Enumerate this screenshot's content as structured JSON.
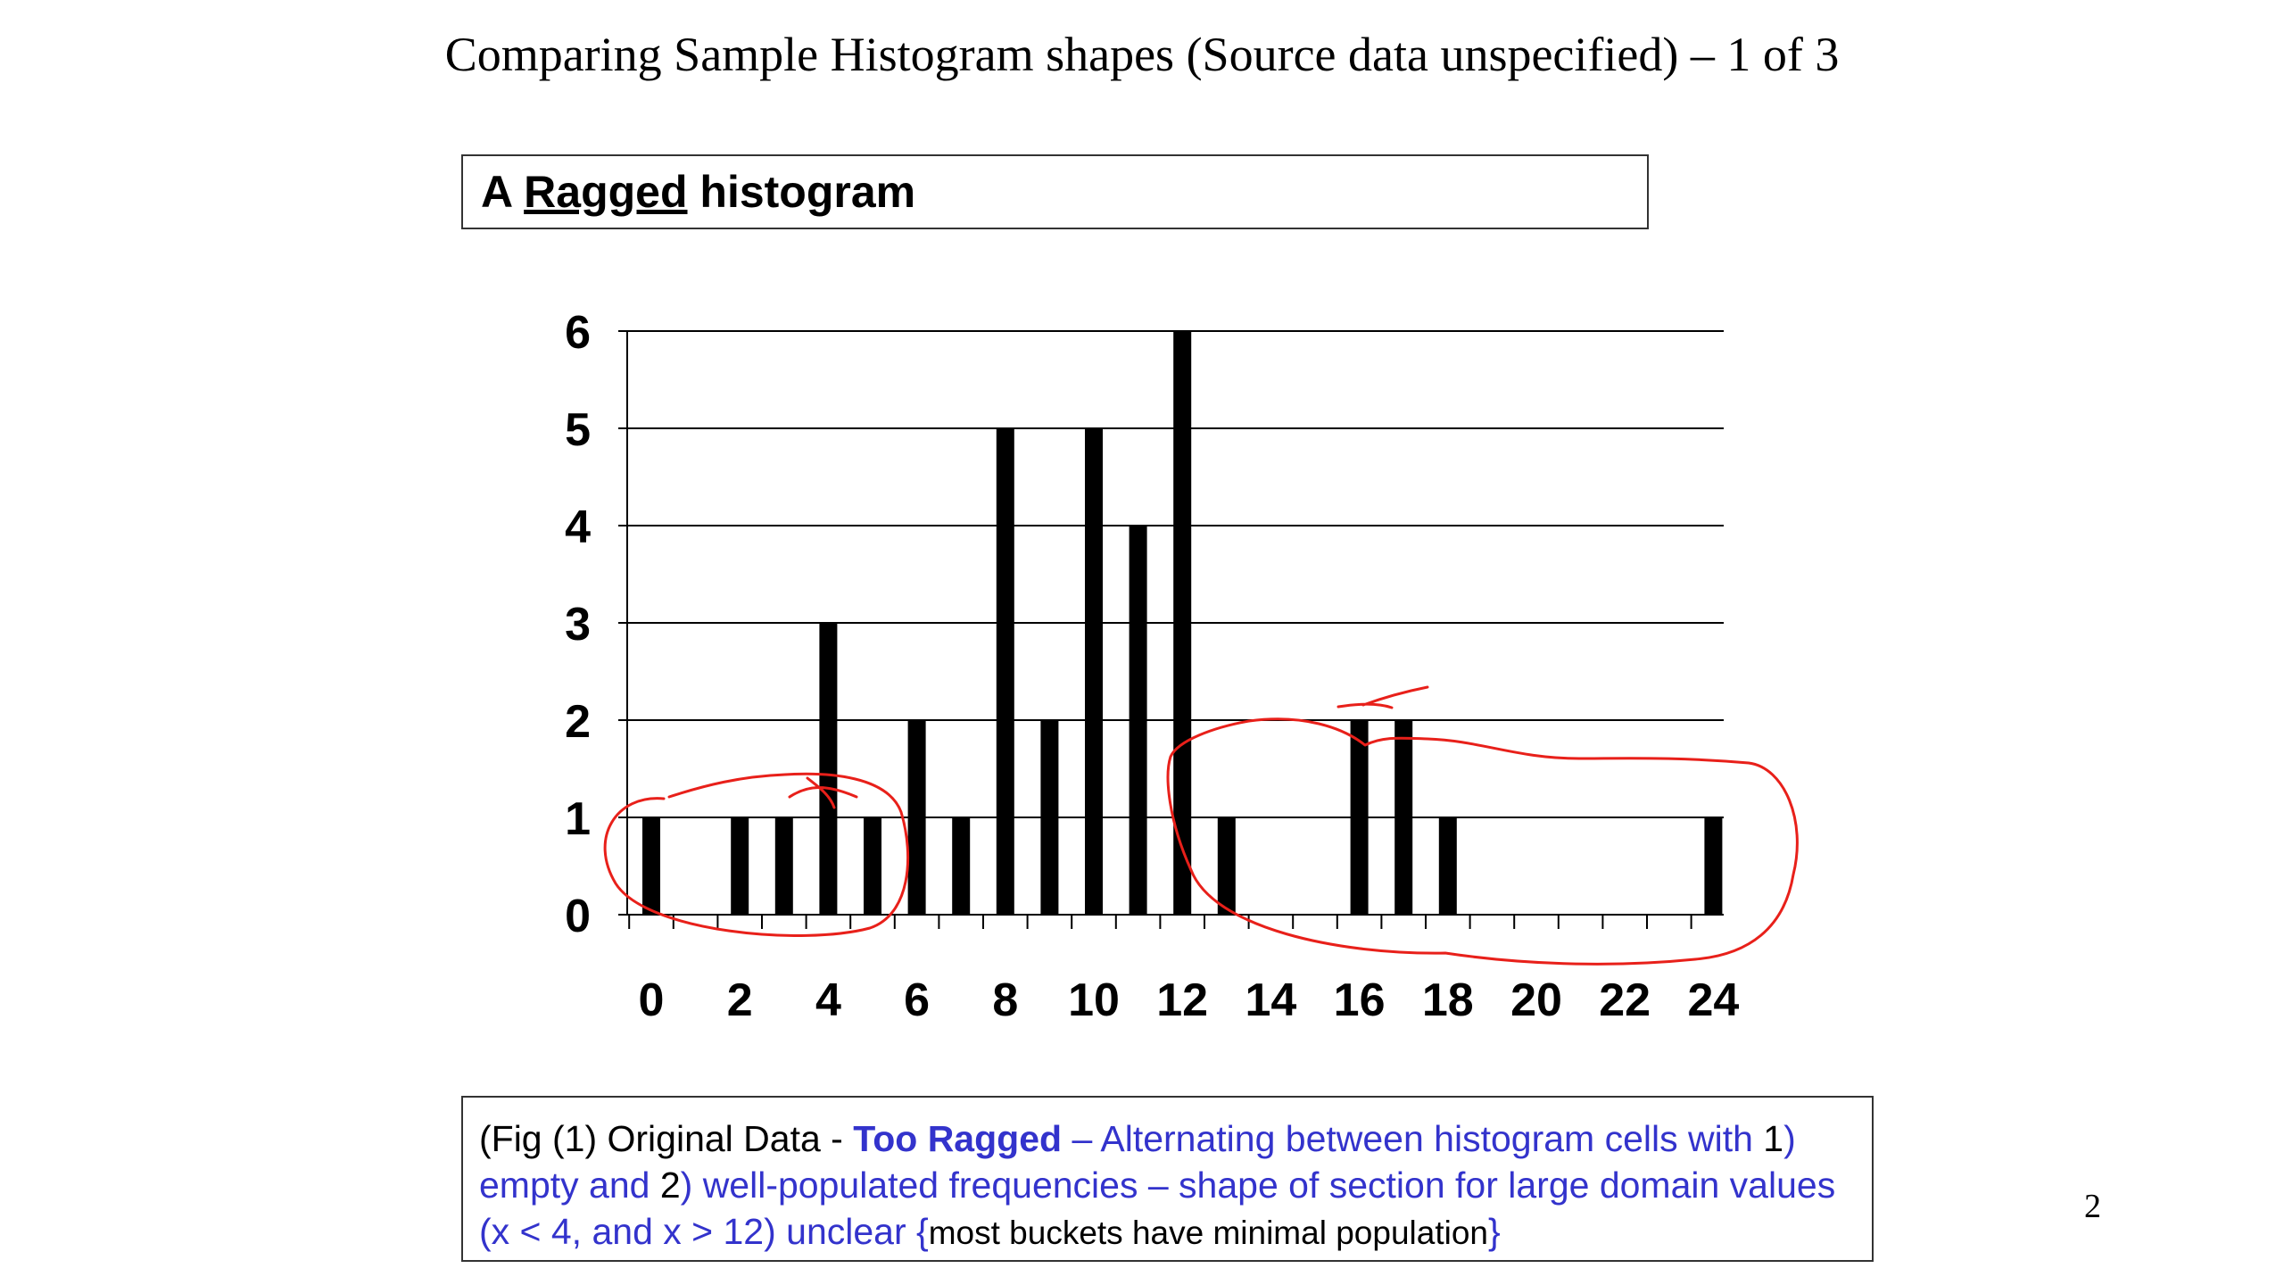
{
  "slide": {
    "title": "Comparing Sample Histogram shapes (Source data unspecified) – 1 of 3",
    "page_number": "2"
  },
  "title_box": {
    "prefix": "A ",
    "underlined": "Ragged",
    "suffix": " histogram"
  },
  "caption": {
    "part1": "(Fig (1) Original Data - ",
    "emphasis": "Too Ragged",
    "part2": " – Alternating between histogram cells with ",
    "num1": "1",
    "part3": ") empty and ",
    "num2": "2",
    "part4": ") well-populated frequencies – shape of section for large domain values (x < 4, and x > 12) unclear {",
    "small": "most buckets have minimal population",
    "part5": "}"
  },
  "colors": {
    "bar": "#000000",
    "annotation": "#e8201a",
    "caption_text": "#3333cc"
  },
  "chart_data": {
    "type": "bar",
    "categories": [
      0,
      1,
      2,
      3,
      4,
      5,
      6,
      7,
      8,
      9,
      10,
      11,
      12,
      13,
      14,
      15,
      16,
      17,
      18,
      19,
      20,
      21,
      22,
      23,
      24
    ],
    "values": [
      1,
      0,
      1,
      1,
      3,
      1,
      2,
      1,
      5,
      2,
      5,
      4,
      6,
      1,
      0,
      0,
      2,
      2,
      1,
      0,
      0,
      0,
      0,
      0,
      1
    ],
    "x_tick_labels": [
      "0",
      "2",
      "4",
      "6",
      "8",
      "10",
      "12",
      "14",
      "16",
      "18",
      "20",
      "22",
      "24"
    ],
    "y_tick_labels": [
      "0",
      "1",
      "2",
      "3",
      "4",
      "5",
      "6"
    ],
    "ylim": [
      0,
      6
    ],
    "grid": true,
    "legend": "none",
    "annotations": "hand-drawn red ellipses around low-count regions x < 6 and x > 12"
  }
}
